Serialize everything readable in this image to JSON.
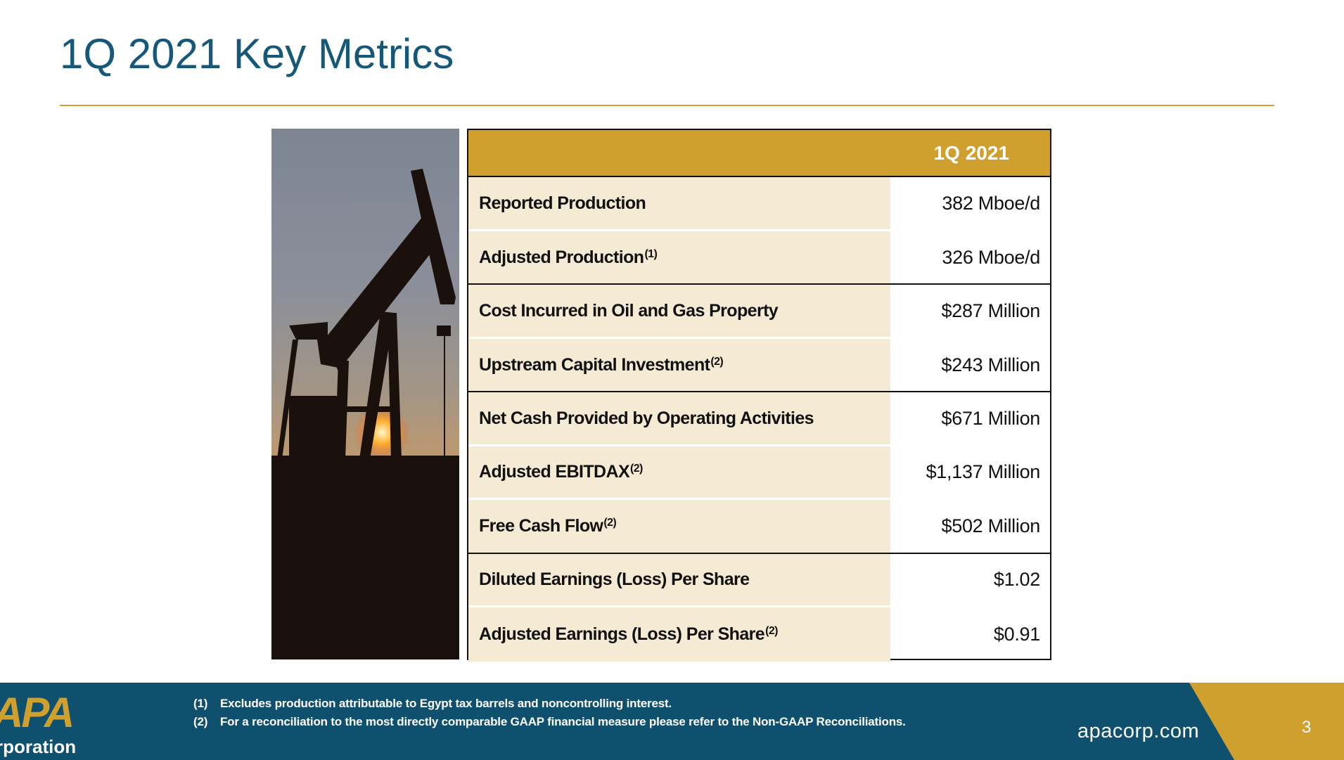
{
  "title": "1Q 2021 Key Metrics",
  "table": {
    "column_header": "1Q 2021",
    "rows": [
      {
        "label": "Reported Production",
        "note": "",
        "value": "382 Mboe/d"
      },
      {
        "label": "Adjusted Production",
        "note": "(1)",
        "value": "326 Mboe/d"
      },
      {
        "label": "Cost Incurred in Oil and Gas Property",
        "note": "",
        "value": "$287 Million"
      },
      {
        "label": "Upstream Capital Investment",
        "note": "(2)",
        "value": "$243 Million"
      },
      {
        "label": "Net Cash Provided by Operating Activities",
        "note": "",
        "value": "$671 Million"
      },
      {
        "label": "Adjusted EBITDAX",
        "note": "(2)",
        "value": "$1,137 Million"
      },
      {
        "label": "Free Cash Flow",
        "note": "(2)",
        "value": "$502 Million"
      },
      {
        "label": "Diluted Earnings (Loss) Per Share",
        "note": "",
        "value": "$1.02"
      },
      {
        "label": "Adjusted Earnings (Loss) Per Share",
        "note": "(2)",
        "value": "$0.91"
      }
    ]
  },
  "footer": {
    "logo_top": "APA",
    "logo_bottom": "rporation",
    "footnotes": [
      {
        "num": "(1)",
        "text": "Excludes production attributable to Egypt tax barrels and noncontrolling interest."
      },
      {
        "num": "(2)",
        "text": "For a reconciliation to the most directly comparable GAAP financial measure please refer to the Non-GAAP Reconciliations."
      }
    ],
    "website": "apacorp.com",
    "page_number": "3"
  },
  "colors": {
    "title": "#16587a",
    "gold": "#cfa02d",
    "footer": "#10506f",
    "label_bg": "#f5ead3"
  }
}
